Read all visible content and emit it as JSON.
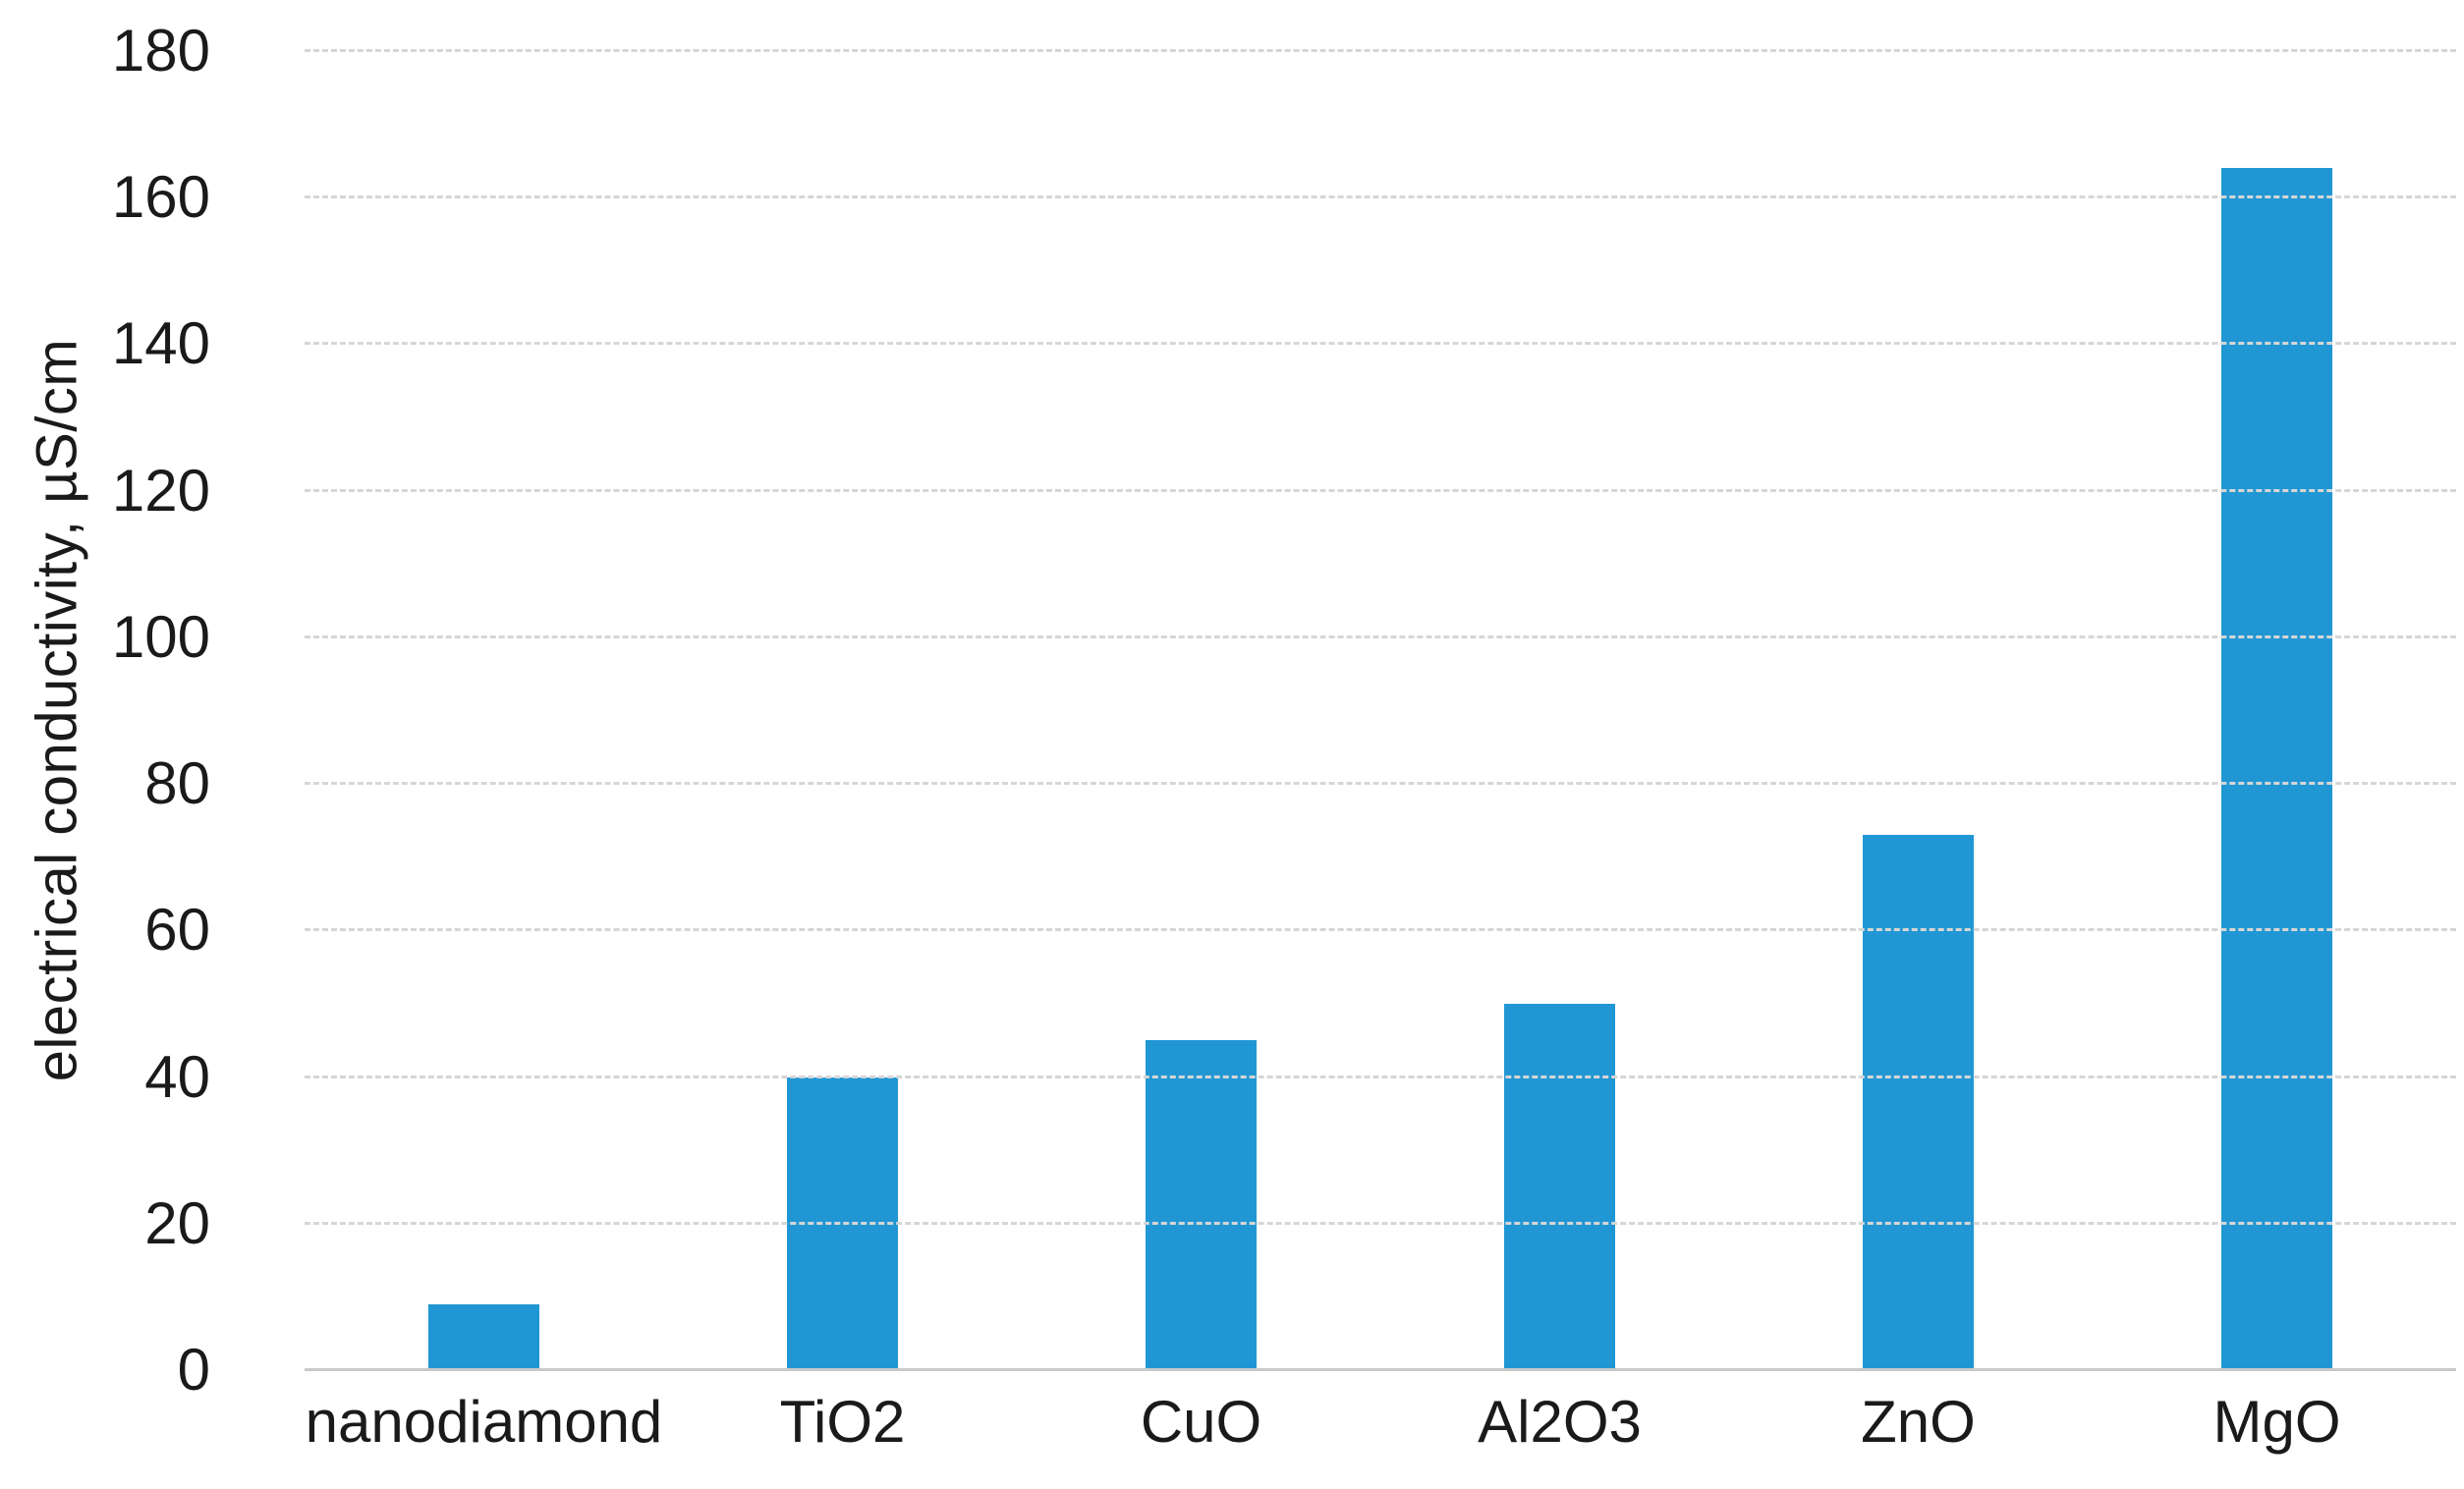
{
  "chart_data": {
    "type": "bar",
    "title": "",
    "categories": [
      "nanodiamond",
      "TiO2",
      "CuO",
      "Al2O3",
      "ZnO",
      "MgO"
    ],
    "values": [
      9,
      40,
      45,
      50,
      73,
      164
    ],
    "xlabel": "",
    "ylabel": "electrical conductivity, µS/cm",
    "ylim": [
      0,
      180
    ],
    "yticks": [
      0,
      20,
      40,
      60,
      80,
      100,
      120,
      140,
      160,
      180
    ],
    "grid": "horizontal",
    "legend_position": "none",
    "bar_color": "#2097d4",
    "gridline_color": "#d6d6d6",
    "baseline_color": "#c9c9c9",
    "text_color": "#1a1a1a",
    "background_color": "#ffffff"
  }
}
